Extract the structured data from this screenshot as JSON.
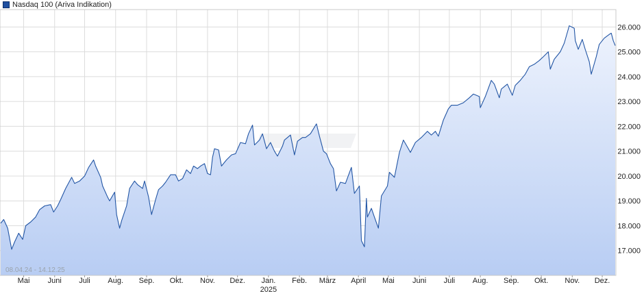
{
  "legend": {
    "label": "Nasdaq 100 (Ariva Indikation)"
  },
  "range_label": "08.04.24 - 14.12.25",
  "colors": {
    "line": "#2255a4",
    "fill_top": "#eef3fd",
    "fill_bottom": "#b8cdf3",
    "grid": "#dcdcdc"
  },
  "chart_data": {
    "type": "area",
    "title": "",
    "xlabel": "",
    "ylabel": "",
    "ylim": [
      16000,
      26700
    ],
    "y_ticks": [
      17000,
      18000,
      19000,
      20000,
      21000,
      22000,
      23000,
      24000,
      25000,
      26000
    ],
    "y_tick_labels": [
      "17.000",
      "18.000",
      "19.000",
      "20.000",
      "21.000",
      "22.000",
      "23.000",
      "24.000",
      "25.000",
      "26.000"
    ],
    "x_range": [
      "2024-04-08",
      "2025-12-14"
    ],
    "x_ticks": [
      {
        "label": "Mai",
        "date": "2024-05-01"
      },
      {
        "label": "Juni",
        "date": "2024-06-01"
      },
      {
        "label": "Juli",
        "date": "2024-07-01"
      },
      {
        "label": "Aug.",
        "date": "2024-08-01"
      },
      {
        "label": "Sep.",
        "date": "2024-09-01"
      },
      {
        "label": "Okt.",
        "date": "2024-10-01"
      },
      {
        "label": "Nov.",
        "date": "2024-11-01"
      },
      {
        "label": "Dez.",
        "date": "2024-12-01"
      },
      {
        "label": "Jan.",
        "date": "2025-01-01",
        "year": "2025"
      },
      {
        "label": "Feb.",
        "date": "2025-02-01"
      },
      {
        "label": "März",
        "date": "2025-03-01"
      },
      {
        "label": "April",
        "date": "2025-04-01"
      },
      {
        "label": "Mai",
        "date": "2025-05-01"
      },
      {
        "label": "Juni",
        "date": "2025-06-01"
      },
      {
        "label": "Juli",
        "date": "2025-07-01"
      },
      {
        "label": "Aug.",
        "date": "2025-08-01"
      },
      {
        "label": "Sep.",
        "date": "2025-09-01"
      },
      {
        "label": "Okt.",
        "date": "2025-10-01"
      },
      {
        "label": "Nov.",
        "date": "2025-11-01"
      },
      {
        "label": "Dez.",
        "date": "2025-12-01"
      }
    ],
    "grid": true,
    "legend_position": "top-left",
    "series": [
      {
        "name": "Nasdaq 100 (Ariva Indikation)",
        "points": [
          [
            "2024-04-08",
            18100
          ],
          [
            "2024-04-11",
            18250
          ],
          [
            "2024-04-15",
            17900
          ],
          [
            "2024-04-19",
            17050
          ],
          [
            "2024-04-22",
            17350
          ],
          [
            "2024-04-26",
            17700
          ],
          [
            "2024-04-30",
            17450
          ],
          [
            "2024-05-03",
            18000
          ],
          [
            "2024-05-08",
            18150
          ],
          [
            "2024-05-13",
            18350
          ],
          [
            "2024-05-17",
            18650
          ],
          [
            "2024-05-22",
            18800
          ],
          [
            "2024-05-28",
            18850
          ],
          [
            "2024-05-31",
            18550
          ],
          [
            "2024-06-04",
            18800
          ],
          [
            "2024-06-07",
            19050
          ],
          [
            "2024-06-12",
            19500
          ],
          [
            "2024-06-18",
            19950
          ],
          [
            "2024-06-21",
            19700
          ],
          [
            "2024-06-26",
            19800
          ],
          [
            "2024-07-01",
            20000
          ],
          [
            "2024-07-05",
            20350
          ],
          [
            "2024-07-10",
            20650
          ],
          [
            "2024-07-12",
            20400
          ],
          [
            "2024-07-17",
            19950
          ],
          [
            "2024-07-19",
            19600
          ],
          [
            "2024-07-24",
            19150
          ],
          [
            "2024-07-26",
            19000
          ],
          [
            "2024-07-31",
            19350
          ],
          [
            "2024-08-02",
            18450
          ],
          [
            "2024-08-05",
            17900
          ],
          [
            "2024-08-07",
            18200
          ],
          [
            "2024-08-12",
            18800
          ],
          [
            "2024-08-15",
            19500
          ],
          [
            "2024-08-20",
            19800
          ],
          [
            "2024-08-23",
            19650
          ],
          [
            "2024-08-28",
            19500
          ],
          [
            "2024-08-30",
            19800
          ],
          [
            "2024-09-03",
            19150
          ],
          [
            "2024-09-06",
            18450
          ],
          [
            "2024-09-10",
            19050
          ],
          [
            "2024-09-13",
            19450
          ],
          [
            "2024-09-17",
            19600
          ],
          [
            "2024-09-20",
            19750
          ],
          [
            "2024-09-25",
            20050
          ],
          [
            "2024-09-30",
            20050
          ],
          [
            "2024-10-03",
            19800
          ],
          [
            "2024-10-07",
            19900
          ],
          [
            "2024-10-11",
            20250
          ],
          [
            "2024-10-15",
            20100
          ],
          [
            "2024-10-18",
            20400
          ],
          [
            "2024-10-22",
            20300
          ],
          [
            "2024-10-25",
            20400
          ],
          [
            "2024-10-29",
            20500
          ],
          [
            "2024-11-01",
            20100
          ],
          [
            "2024-11-04",
            20050
          ],
          [
            "2024-11-06",
            20750
          ],
          [
            "2024-11-08",
            21100
          ],
          [
            "2024-11-12",
            21050
          ],
          [
            "2024-11-15",
            20400
          ],
          [
            "2024-11-20",
            20650
          ],
          [
            "2024-11-25",
            20850
          ],
          [
            "2024-11-29",
            20900
          ],
          [
            "2024-12-04",
            21350
          ],
          [
            "2024-12-09",
            21300
          ],
          [
            "2024-12-12",
            21700
          ],
          [
            "2024-12-16",
            22050
          ],
          [
            "2024-12-18",
            21250
          ],
          [
            "2024-12-23",
            21450
          ],
          [
            "2024-12-26",
            21700
          ],
          [
            "2024-12-30",
            21100
          ],
          [
            "2025-01-03",
            21350
          ],
          [
            "2025-01-07",
            21000
          ],
          [
            "2025-01-10",
            20800
          ],
          [
            "2025-01-15",
            21200
          ],
          [
            "2025-01-17",
            21450
          ],
          [
            "2025-01-23",
            21650
          ],
          [
            "2025-01-27",
            20850
          ],
          [
            "2025-01-30",
            21400
          ],
          [
            "2025-02-04",
            21550
          ],
          [
            "2025-02-07",
            21550
          ],
          [
            "2025-02-12",
            21700
          ],
          [
            "2025-02-18",
            22100
          ],
          [
            "2025-02-21",
            21600
          ],
          [
            "2025-02-25",
            21000
          ],
          [
            "2025-02-28",
            20900
          ],
          [
            "2025-03-04",
            20500
          ],
          [
            "2025-03-07",
            20300
          ],
          [
            "2025-03-10",
            19400
          ],
          [
            "2025-03-14",
            19750
          ],
          [
            "2025-03-19",
            19700
          ],
          [
            "2025-03-25",
            20350
          ],
          [
            "2025-03-28",
            19300
          ],
          [
            "2025-04-02",
            19600
          ],
          [
            "2025-04-04",
            17400
          ],
          [
            "2025-04-07",
            17150
          ],
          [
            "2025-04-09",
            19100
          ],
          [
            "2025-04-10",
            18350
          ],
          [
            "2025-04-14",
            18700
          ],
          [
            "2025-04-17",
            18350
          ],
          [
            "2025-04-21",
            17900
          ],
          [
            "2025-04-24",
            19200
          ],
          [
            "2025-04-30",
            19600
          ],
          [
            "2025-05-02",
            20150
          ],
          [
            "2025-05-07",
            19950
          ],
          [
            "2025-05-12",
            20950
          ],
          [
            "2025-05-16",
            21450
          ],
          [
            "2025-05-21",
            21100
          ],
          [
            "2025-05-23",
            20950
          ],
          [
            "2025-05-28",
            21350
          ],
          [
            "2025-06-03",
            21550
          ],
          [
            "2025-06-09",
            21800
          ],
          [
            "2025-06-13",
            21650
          ],
          [
            "2025-06-17",
            21800
          ],
          [
            "2025-06-20",
            21600
          ],
          [
            "2025-06-25",
            22250
          ],
          [
            "2025-06-30",
            22700
          ],
          [
            "2025-07-03",
            22850
          ],
          [
            "2025-07-09",
            22850
          ],
          [
            "2025-07-15",
            22950
          ],
          [
            "2025-07-21",
            23150
          ],
          [
            "2025-07-25",
            23300
          ],
          [
            "2025-07-31",
            23200
          ],
          [
            "2025-08-01",
            22750
          ],
          [
            "2025-08-06",
            23200
          ],
          [
            "2025-08-12",
            23850
          ],
          [
            "2025-08-15",
            23700
          ],
          [
            "2025-08-20",
            23150
          ],
          [
            "2025-08-22",
            23500
          ],
          [
            "2025-08-28",
            23700
          ],
          [
            "2025-09-02",
            23250
          ],
          [
            "2025-09-05",
            23650
          ],
          [
            "2025-09-10",
            23850
          ],
          [
            "2025-09-15",
            24100
          ],
          [
            "2025-09-19",
            24400
          ],
          [
            "2025-09-24",
            24500
          ],
          [
            "2025-09-29",
            24650
          ],
          [
            "2025-10-03",
            24800
          ],
          [
            "2025-10-08",
            25000
          ],
          [
            "2025-10-10",
            24300
          ],
          [
            "2025-10-14",
            24700
          ],
          [
            "2025-10-20",
            25000
          ],
          [
            "2025-10-24",
            25350
          ],
          [
            "2025-10-29",
            26050
          ],
          [
            "2025-11-03",
            25950
          ],
          [
            "2025-11-04",
            25450
          ],
          [
            "2025-11-07",
            25100
          ],
          [
            "2025-11-11",
            25500
          ],
          [
            "2025-11-14",
            25100
          ],
          [
            "2025-11-18",
            24600
          ],
          [
            "2025-11-20",
            24100
          ],
          [
            "2025-11-25",
            24800
          ],
          [
            "2025-11-28",
            25300
          ],
          [
            "2025-12-03",
            25550
          ],
          [
            "2025-12-08",
            25700
          ],
          [
            "2025-12-10",
            25750
          ],
          [
            "2025-12-12",
            25450
          ],
          [
            "2025-12-14",
            25250
          ]
        ]
      }
    ]
  }
}
